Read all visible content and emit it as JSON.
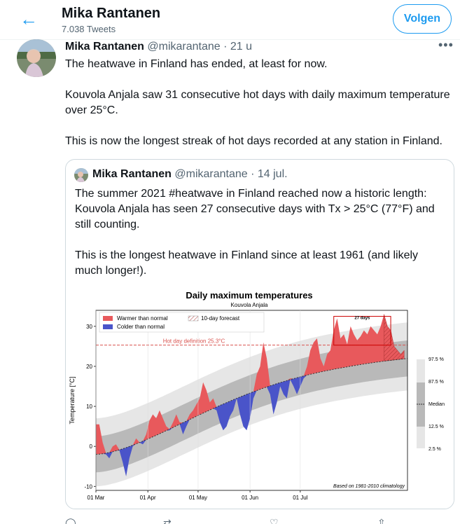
{
  "header": {
    "back_icon": "arrow-left-icon",
    "name": "Mika Rantanen",
    "tweet_count": "7.038 Tweets",
    "follow_label": "Volgen"
  },
  "tweet": {
    "name": "Mika Rantanen",
    "handle_time": "@mikarantane · 21 u",
    "more_icon": "more-dots-icon",
    "paragraphs": [
      "The heatwave in Finland has ended, at least for now.",
      "Kouvola Anjala saw 31 consecutive hot days with daily maximum temperature over 25°C.",
      "This is now the longest streak of hot days recorded at any station in Finland."
    ]
  },
  "quote": {
    "name": "Mika Rantanen",
    "handle_time": "@mikarantane · 14 jul.",
    "paragraphs": [
      "The summer 2021 #heatwave in Finland reached now a historic length: Kouvola Anjala has seen 27 consecutive days with Tx > 25°C (77°F) and still counting.",
      "This is the longest heatwave in Finland since at least 1961 (and likely much longer!)."
    ]
  },
  "chart_data": {
    "type": "area",
    "title": "Daily maximum temperatures",
    "subtitle": "Kouvola Anjala",
    "ylabel": "Temperature [°C]",
    "ylim": [
      -11,
      34
    ],
    "yticks": [
      "-10",
      "0",
      "10",
      "20",
      "30"
    ],
    "xticks": [
      "01 Mar",
      "01 Apr",
      "01 May",
      "01 Jun",
      "01 Jul"
    ],
    "legend": [
      "Warmer than normal",
      "Colder than normal",
      "10-day forecast"
    ],
    "threshold_label": "Hot day definition 25.3°C",
    "threshold": 25.3,
    "streak_label": "27 days",
    "percentile_labels": [
      "97.5 %",
      "87.5 %",
      "Median",
      "12.5 %",
      "2.5 %"
    ],
    "footnote": "Based on 1981-2010 climatology",
    "colors": {
      "warm": "#e8595c",
      "cold": "#4a54c9",
      "threshold": "#d9534f",
      "band_outer": "#e6e6e6",
      "band_inner": "#b9b9b9"
    },
    "observed": [
      [
        0,
        5.5
      ],
      [
        2,
        5.5
      ],
      [
        4,
        1
      ],
      [
        6,
        -2
      ],
      [
        8,
        -3
      ],
      [
        10,
        0
      ],
      [
        12,
        0.5
      ],
      [
        14,
        -1
      ],
      [
        16,
        -4
      ],
      [
        18,
        -7.5
      ],
      [
        20,
        -3
      ],
      [
        22,
        0
      ],
      [
        24,
        2
      ],
      [
        26,
        1
      ],
      [
        28,
        0.5
      ],
      [
        30,
        3
      ],
      [
        32,
        6.5
      ],
      [
        34,
        8
      ],
      [
        36,
        7
      ],
      [
        38,
        9
      ],
      [
        40,
        7
      ],
      [
        42,
        5
      ],
      [
        44,
        4
      ],
      [
        46,
        6
      ],
      [
        48,
        8
      ],
      [
        50,
        6
      ],
      [
        52,
        3
      ],
      [
        54,
        5
      ],
      [
        56,
        8
      ],
      [
        58,
        9
      ],
      [
        60,
        10.5
      ],
      [
        62,
        12
      ],
      [
        64,
        16
      ],
      [
        66,
        14
      ],
      [
        68,
        11
      ],
      [
        70,
        12
      ],
      [
        72,
        9
      ],
      [
        74,
        6
      ],
      [
        76,
        4
      ],
      [
        78,
        5
      ],
      [
        80,
        7.5
      ],
      [
        82,
        9
      ],
      [
        84,
        12
      ],
      [
        86,
        8
      ],
      [
        88,
        5
      ],
      [
        90,
        4
      ],
      [
        92,
        7
      ],
      [
        94,
        12
      ],
      [
        96,
        18
      ],
      [
        98,
        20
      ],
      [
        100,
        26
      ],
      [
        102,
        22
      ],
      [
        104,
        13
      ],
      [
        106,
        8
      ],
      [
        108,
        11
      ],
      [
        110,
        15
      ],
      [
        112,
        13
      ],
      [
        114,
        12
      ],
      [
        116,
        17
      ],
      [
        118,
        15
      ],
      [
        120,
        13
      ],
      [
        122,
        15
      ],
      [
        124,
        17
      ],
      [
        126,
        20
      ],
      [
        128,
        24
      ],
      [
        130,
        26
      ],
      [
        132,
        27
      ],
      [
        134,
        22
      ],
      [
        136,
        20
      ],
      [
        138,
        23
      ],
      [
        140,
        24
      ],
      [
        142,
        29
      ],
      [
        144,
        32
      ],
      [
        146,
        27
      ],
      [
        148,
        28
      ],
      [
        150,
        25.5
      ],
      [
        152,
        30
      ],
      [
        154,
        28
      ],
      [
        156,
        26.5
      ],
      [
        158,
        27.5
      ],
      [
        160,
        29
      ],
      [
        162,
        28
      ],
      [
        164,
        30
      ],
      [
        166,
        29
      ],
      [
        168,
        28
      ],
      [
        170,
        30
      ],
      [
        172,
        33
      ],
      [
        174,
        30
      ],
      [
        176,
        29
      ],
      [
        178,
        25
      ],
      [
        180,
        24
      ],
      [
        182,
        23
      ],
      [
        184,
        24
      ]
    ],
    "forecast_from": 172
  }
}
